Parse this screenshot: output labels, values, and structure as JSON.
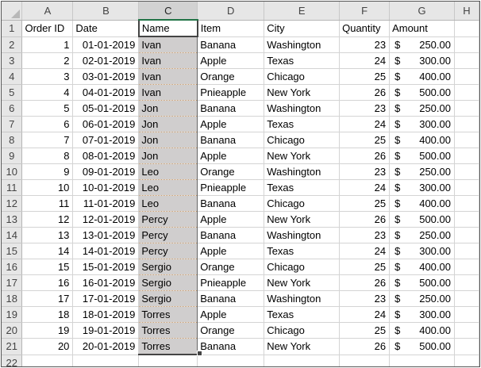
{
  "columns": [
    "A",
    "B",
    "C",
    "D",
    "E",
    "F",
    "G",
    "H"
  ],
  "row_numbers": [
    "1",
    "2",
    "3",
    "4",
    "5",
    "6",
    "7",
    "8",
    "9",
    "10",
    "11",
    "12",
    "13",
    "14",
    "15",
    "16",
    "17",
    "18",
    "19",
    "20",
    "21",
    "22"
  ],
  "headers": {
    "order_id": "Order ID",
    "date": "Date",
    "name": "Name",
    "item": "Item",
    "city": "City",
    "quantity": "Quantity",
    "amount": "Amount"
  },
  "currency_symbol": "$",
  "selected_column": "C",
  "rows": [
    {
      "id": "1",
      "date": "01-01-2019",
      "name": "Ivan",
      "item": "Banana",
      "city": "Washington",
      "qty": "23",
      "amount": "250.00"
    },
    {
      "id": "2",
      "date": "02-01-2019",
      "name": "Ivan",
      "item": "Apple",
      "city": "Texas",
      "qty": "24",
      "amount": "300.00"
    },
    {
      "id": "3",
      "date": "03-01-2019",
      "name": "Ivan",
      "item": "Orange",
      "city": "Chicago",
      "qty": "25",
      "amount": "400.00"
    },
    {
      "id": "4",
      "date": "04-01-2019",
      "name": "Ivan",
      "item": "Pnieapple",
      "city": "New York",
      "qty": "26",
      "amount": "500.00"
    },
    {
      "id": "5",
      "date": "05-01-2019",
      "name": "Jon",
      "item": "Banana",
      "city": "Washington",
      "qty": "23",
      "amount": "250.00"
    },
    {
      "id": "6",
      "date": "06-01-2019",
      "name": "Jon",
      "item": "Apple",
      "city": "Texas",
      "qty": "24",
      "amount": "300.00"
    },
    {
      "id": "7",
      "date": "07-01-2019",
      "name": "Jon",
      "item": "Banana",
      "city": "Chicago",
      "qty": "25",
      "amount": "400.00"
    },
    {
      "id": "8",
      "date": "08-01-2019",
      "name": "Jon",
      "item": "Apple",
      "city": "New York",
      "qty": "26",
      "amount": "500.00"
    },
    {
      "id": "9",
      "date": "09-01-2019",
      "name": "Leo",
      "item": "Orange",
      "city": "Washington",
      "qty": "23",
      "amount": "250.00"
    },
    {
      "id": "10",
      "date": "10-01-2019",
      "name": "Leo",
      "item": "Pnieapple",
      "city": "Texas",
      "qty": "24",
      "amount": "300.00"
    },
    {
      "id": "11",
      "date": "11-01-2019",
      "name": "Leo",
      "item": "Banana",
      "city": "Chicago",
      "qty": "25",
      "amount": "400.00"
    },
    {
      "id": "12",
      "date": "12-01-2019",
      "name": "Percy",
      "item": "Apple",
      "city": "New York",
      "qty": "26",
      "amount": "500.00"
    },
    {
      "id": "13",
      "date": "13-01-2019",
      "name": "Percy",
      "item": "Banana",
      "city": "Washington",
      "qty": "23",
      "amount": "250.00"
    },
    {
      "id": "14",
      "date": "14-01-2019",
      "name": "Percy",
      "item": "Apple",
      "city": "Texas",
      "qty": "24",
      "amount": "300.00"
    },
    {
      "id": "15",
      "date": "15-01-2019",
      "name": "Sergio",
      "item": "Orange",
      "city": "Chicago",
      "qty": "25",
      "amount": "400.00"
    },
    {
      "id": "16",
      "date": "16-01-2019",
      "name": "Sergio",
      "item": "Pnieapple",
      "city": "New York",
      "qty": "26",
      "amount": "500.00"
    },
    {
      "id": "17",
      "date": "17-01-2019",
      "name": "Sergio",
      "item": "Banana",
      "city": "Washington",
      "qty": "23",
      "amount": "250.00"
    },
    {
      "id": "18",
      "date": "18-01-2019",
      "name": "Torres",
      "item": "Apple",
      "city": "Texas",
      "qty": "24",
      "amount": "300.00"
    },
    {
      "id": "19",
      "date": "19-01-2019",
      "name": "Torres",
      "item": "Orange",
      "city": "Chicago",
      "qty": "25",
      "amount": "400.00"
    },
    {
      "id": "20",
      "date": "20-01-2019",
      "name": "Torres",
      "item": "Banana",
      "city": "New York",
      "qty": "26",
      "amount": "500.00"
    }
  ]
}
